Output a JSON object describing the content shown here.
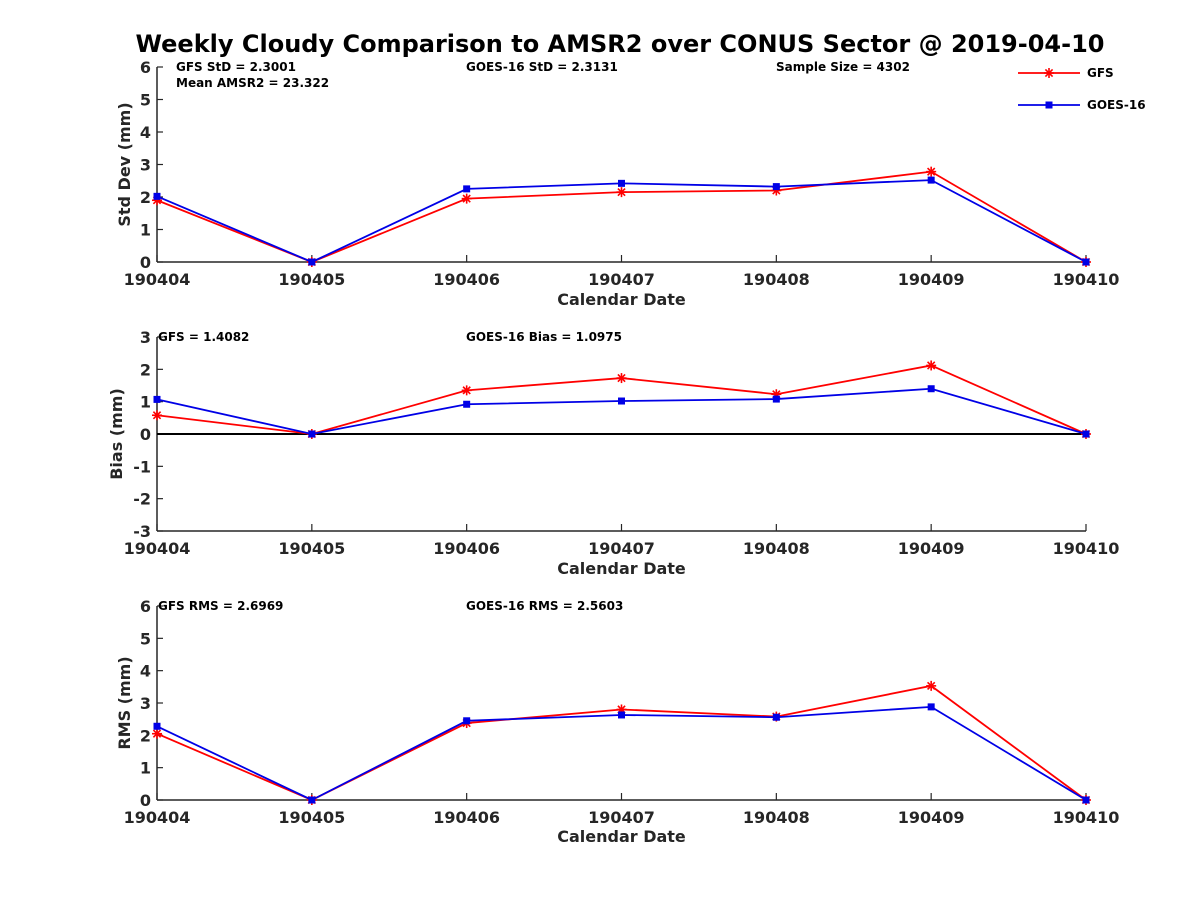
{
  "title": "Weekly Cloudy Comparison to AMSR2 over CONUS Sector @ 2019-04-10",
  "colors": {
    "GFS": "#ff0000",
    "GOES-16": "#0000e6",
    "axis": "#262626",
    "zero_line": "#000000"
  },
  "legend": {
    "position": "top-right",
    "entries": [
      {
        "name": "GFS",
        "marker": "asterisk"
      },
      {
        "name": "GOES-16",
        "marker": "square"
      }
    ]
  },
  "chart_data": [
    {
      "type": "line",
      "x": [
        "190404",
        "190405",
        "190406",
        "190407",
        "190408",
        "190409",
        "190410"
      ],
      "xlabel": "Calendar Date",
      "ylabel": "Std Dev (mm)",
      "ylim": [
        0,
        6
      ],
      "yticks": [
        0,
        1,
        2,
        3,
        4,
        5,
        6
      ],
      "annotations": [
        "GFS StD = 2.3001",
        "Mean AMSR2 = 23.322",
        "GOES-16 StD = 2.3131",
        "Sample Size = 4302"
      ],
      "series": [
        {
          "name": "GFS",
          "values": [
            1.9,
            0.0,
            1.95,
            2.15,
            2.2,
            2.78,
            0.0
          ]
        },
        {
          "name": "GOES-16",
          "values": [
            2.02,
            0.0,
            2.25,
            2.42,
            2.32,
            2.52,
            0.0
          ]
        }
      ]
    },
    {
      "type": "line",
      "x": [
        "190404",
        "190405",
        "190406",
        "190407",
        "190408",
        "190409",
        "190410"
      ],
      "xlabel": "Calendar Date",
      "ylabel": "Bias (mm)",
      "ylim": [
        -3,
        3
      ],
      "yticks": [
        -3,
        -2,
        -1,
        0,
        1,
        2,
        3
      ],
      "annotations": [
        "GFS = 1.4082",
        "GOES-16 Bias  = 1.0975"
      ],
      "series": [
        {
          "name": "GFS",
          "values": [
            0.58,
            0.0,
            1.35,
            1.73,
            1.23,
            2.12,
            0.0
          ]
        },
        {
          "name": "GOES-16",
          "values": [
            1.07,
            0.0,
            0.92,
            1.02,
            1.08,
            1.4,
            0.0
          ]
        }
      ]
    },
    {
      "type": "line",
      "x": [
        "190404",
        "190405",
        "190406",
        "190407",
        "190408",
        "190409",
        "190410"
      ],
      "xlabel": "Calendar Date",
      "ylabel": "RMS (mm)",
      "ylim": [
        0,
        6
      ],
      "yticks": [
        0,
        1,
        2,
        3,
        4,
        5,
        6
      ],
      "annotations": [
        "GFS RMS = 2.6969",
        "GOES-16 RMS = 2.5603"
      ],
      "series": [
        {
          "name": "GFS",
          "values": [
            2.05,
            0.0,
            2.38,
            2.8,
            2.58,
            3.53,
            0.0
          ]
        },
        {
          "name": "GOES-16",
          "values": [
            2.28,
            0.0,
            2.45,
            2.63,
            2.56,
            2.88,
            0.0
          ]
        }
      ]
    }
  ]
}
